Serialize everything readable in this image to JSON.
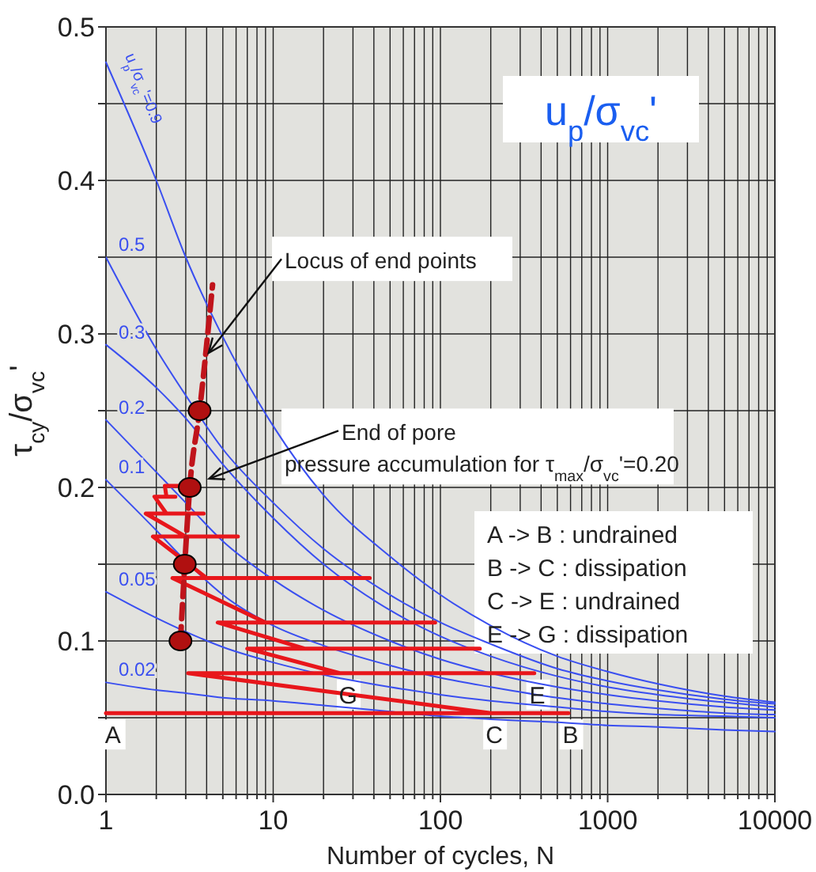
{
  "chart_data": {
    "type": "line",
    "title": "u$_{p}$/σ$_{vc}$'",
    "xlabel": "Number of cycles, N",
    "ylabel": "τ$_{cy}$/σ$_{vc}$'",
    "log": "x",
    "grid": true,
    "marker": "none",
    "xlim": [
      1,
      10000
    ],
    "ylim": [
      0,
      0.5
    ],
    "xticks": [
      1,
      {
        "value": 2,
        "label": null
      },
      {
        "value": 3,
        "label": null
      },
      {
        "value": 4,
        "label": null
      },
      {
        "value": 5,
        "label": null
      },
      {
        "value": 6,
        "label": null
      },
      {
        "value": 7,
        "label": null
      },
      {
        "value": 8,
        "label": null
      },
      {
        "value": 9,
        "label": null
      },
      10,
      {
        "value": 20,
        "label": null
      },
      {
        "value": 30,
        "label": null
      },
      {
        "value": 40,
        "label": null
      },
      {
        "value": 50,
        "label": null
      },
      {
        "value": 60,
        "label": null
      },
      {
        "value": 70,
        "label": null
      },
      {
        "value": 80,
        "label": null
      },
      {
        "value": 90,
        "label": null
      },
      100,
      {
        "value": 200,
        "label": null
      },
      {
        "value": 300,
        "label": null
      },
      {
        "value": 400,
        "label": null
      },
      {
        "value": 500,
        "label": null
      },
      {
        "value": 600,
        "label": null
      },
      {
        "value": 700,
        "label": null
      },
      {
        "value": 800,
        "label": null
      },
      {
        "value": 900,
        "label": null
      },
      1000,
      {
        "value": 2000,
        "label": null
      },
      {
        "value": 3000,
        "label": null
      },
      {
        "value": 4000,
        "label": null
      },
      {
        "value": 5000,
        "label": null
      },
      {
        "value": 6000,
        "label": null
      },
      {
        "value": 7000,
        "label": null
      },
      {
        "value": 8000,
        "label": null
      },
      {
        "value": 9000,
        "label": null
      },
      10000
    ],
    "yticks": [
      {
        "value": 0,
        "label": "0.0"
      },
      {
        "value": 0.05,
        "label": null
      },
      0.1,
      {
        "value": 0.15,
        "label": null
      },
      0.2,
      {
        "value": 0.25,
        "label": null
      },
      0.3,
      {
        "value": 0.35,
        "label": null
      },
      0.4,
      {
        "value": 0.45,
        "label": null
      },
      0.5
    ],
    "series": [
      {
        "name": "u$_{p}$/σ$_{vc}$'=0.9",
        "color": "#3a4ff0",
        "x": [
          1,
          2,
          3,
          5,
          10,
          20,
          50,
          100,
          200,
          500,
          1000,
          2000,
          5000,
          10000
        ],
        "values": [
          0.477,
          0.4,
          0.35,
          0.298,
          0.24,
          0.195,
          0.155,
          0.13,
          0.11,
          0.09,
          0.08,
          0.072,
          0.064,
          0.06
        ]
      },
      {
        "name": "0.5",
        "color": "#3a4ff0",
        "x": [
          1,
          2,
          3,
          5,
          10,
          20,
          50,
          100,
          200,
          500,
          1000,
          2000,
          5000,
          10000
        ],
        "values": [
          0.35,
          0.29,
          0.26,
          0.225,
          0.19,
          0.16,
          0.13,
          0.112,
          0.098,
          0.082,
          0.074,
          0.068,
          0.062,
          0.059
        ]
      },
      {
        "name": "0.3",
        "color": "#3a4ff0",
        "x": [
          1,
          2,
          3,
          5,
          10,
          20,
          50,
          100,
          200,
          500,
          1000,
          2000,
          5000,
          10000
        ],
        "values": [
          0.293,
          0.265,
          0.245,
          0.215,
          0.18,
          0.15,
          0.12,
          0.103,
          0.09,
          0.077,
          0.07,
          0.065,
          0.06,
          0.057
        ]
      },
      {
        "name": "0.2",
        "color": "#3a4ff0",
        "x": [
          1,
          2,
          3,
          5,
          10,
          20,
          50,
          100,
          200,
          500,
          1000,
          2000,
          5000,
          10000
        ],
        "values": [
          0.244,
          0.21,
          0.19,
          0.165,
          0.14,
          0.12,
          0.1,
          0.088,
          0.079,
          0.07,
          0.065,
          0.061,
          0.057,
          0.055
        ]
      },
      {
        "name": "0.1",
        "color": "#3a4ff0",
        "x": [
          1,
          2,
          3,
          5,
          10,
          20,
          50,
          100,
          200,
          500,
          1000,
          2000,
          5000,
          10000
        ],
        "values": [
          0.205,
          0.172,
          0.152,
          0.13,
          0.11,
          0.097,
          0.084,
          0.076,
          0.07,
          0.063,
          0.059,
          0.056,
          0.053,
          0.052
        ]
      },
      {
        "name": "0.05",
        "color": "#3a4ff0",
        "x": [
          1,
          2,
          3,
          5,
          10,
          20,
          50,
          100,
          200,
          500,
          1000,
          2000,
          5000,
          10000
        ],
        "values": [
          0.132,
          0.115,
          0.106,
          0.096,
          0.086,
          0.078,
          0.07,
          0.065,
          0.061,
          0.057,
          0.054,
          0.052,
          0.051,
          0.05
        ]
      },
      {
        "name": "0.02",
        "color": "#3a4ff0",
        "x": [
          1,
          2,
          3,
          5,
          10,
          20,
          50,
          100,
          200,
          500,
          1000,
          2000,
          5000,
          10000
        ],
        "values": [
          0.073,
          0.068,
          0.066,
          0.063,
          0.061,
          0.058,
          0.054,
          0.051,
          0.049,
          0.047,
          0.045,
          0.044,
          0.042,
          0.041
        ]
      },
      {
        "color": "#e8161b",
        "x": [
          1,
          583,
          200,
          3.1,
          364,
          25,
          7,
          172,
          15.4,
          4.66,
          93,
          9,
          2.5,
          37.8,
          4,
          1.91,
          6.15,
          3,
          1.73,
          3.84,
          2.3,
          1.95,
          2.6,
          2.3,
          2.25,
          2.99
        ],
        "values": [
          0.053,
          0.053,
          0.053,
          0.079,
          0.079,
          0.079,
          0.095,
          0.095,
          0.095,
          0.112,
          0.112,
          0.112,
          0.141,
          0.141,
          0.141,
          0.168,
          0.168,
          0.168,
          0.183,
          0.183,
          0.183,
          0.194,
          0.194,
          0.194,
          0.201,
          0.201
        ]
      },
      {
        "color": "#c0141b",
        "line_style": "dashed",
        "x": [
          2.79,
          2.96,
          3.17,
          3.63,
          4.34
        ],
        "values": [
          0.1,
          0.15,
          0.2,
          0.25,
          0.332
        ]
      },
      {
        "type": "scatter",
        "marker": "circle",
        "color": "#b01010",
        "x": [
          2.79,
          2.96,
          3.17,
          3.63
        ],
        "values": [
          0.1,
          0.15,
          0.2,
          0.25
        ]
      }
    ],
    "annotations": [
      {
        "text": "Locus of end points",
        "x": 4,
        "y": 0.286
      },
      {
        "text": "End of  pore\npressure accumulation for τ$_{max}$/σ$_{vc}$'=0.20",
        "x": 3.98,
        "y": 0.205
      },
      "A -> B : undrained\nB -> C : dissipation\nC -> E : undrained\nE -> G : dissipation",
      {
        "text": "A",
        "x": 1.1,
        "y": 0.053
      },
      {
        "text": "B",
        "x": 600,
        "y": 0.053
      },
      {
        "text": "C",
        "x": 210,
        "y": 0.053
      },
      {
        "text": "E",
        "x": 380,
        "y": 0.079
      },
      {
        "text": "G",
        "x": 28,
        "y": 0.079
      }
    ]
  }
}
